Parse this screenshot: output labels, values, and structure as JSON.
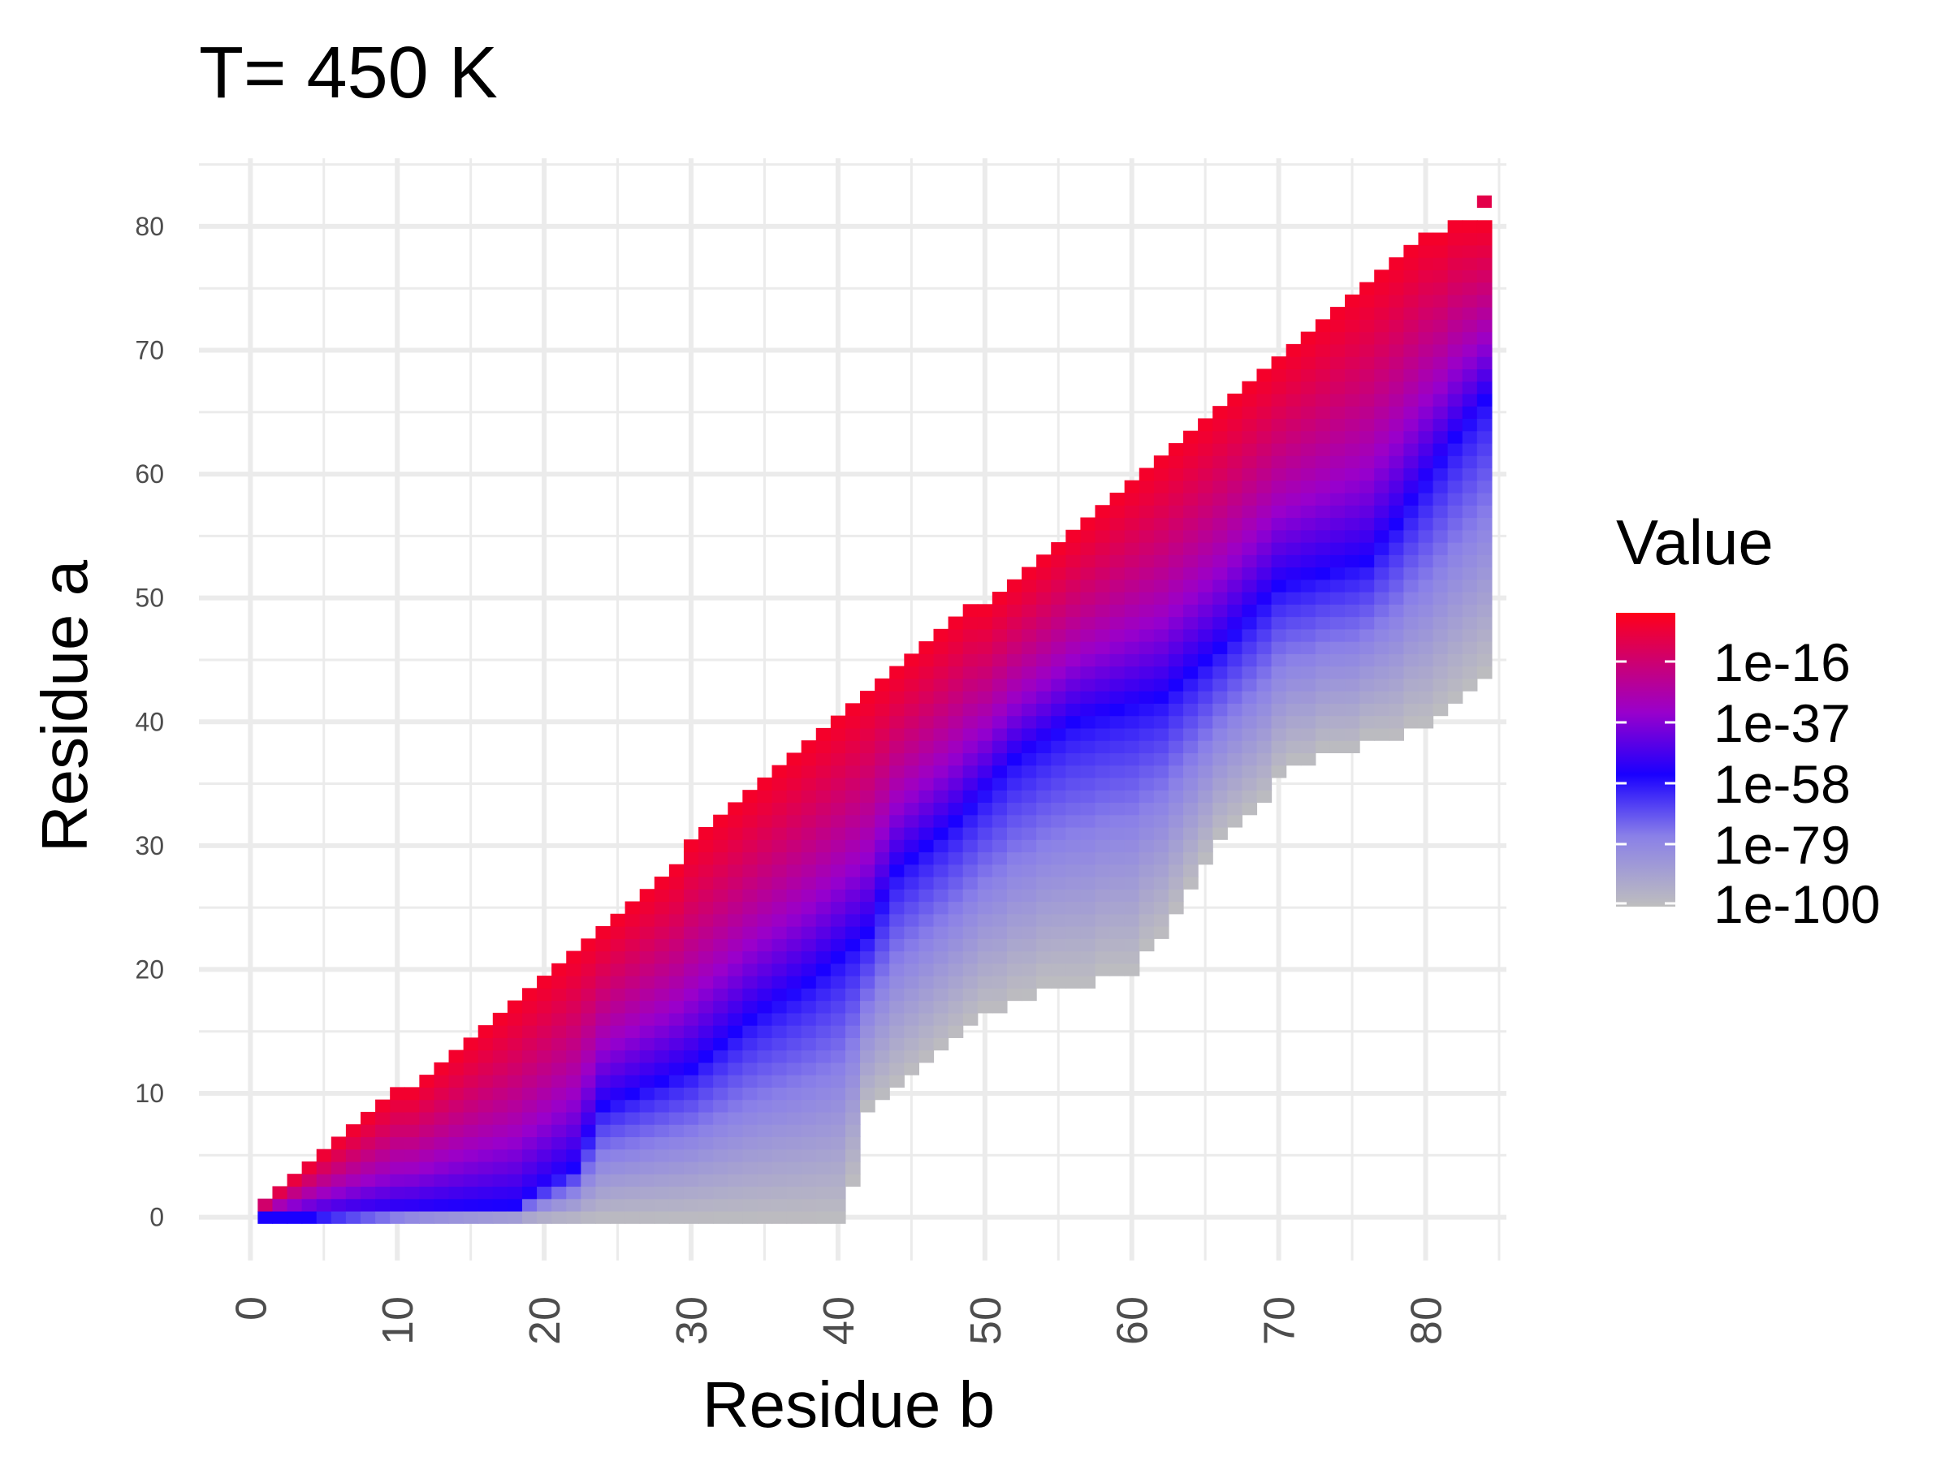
{
  "chart_data": {
    "type": "heatmap",
    "title": "T= 450 K",
    "xlabel": "Residue b",
    "ylabel": "Residue a",
    "xlim": [
      -3.5,
      85.5
    ],
    "ylim": [
      -3.5,
      85.5
    ],
    "x_ticks": [
      "0",
      "10",
      "20",
      "30",
      "40",
      "50",
      "60",
      "70",
      "80"
    ],
    "y_ticks": [
      "0",
      "10",
      "20",
      "30",
      "40",
      "50",
      "60",
      "70",
      "80"
    ],
    "grid": true,
    "color_scale": "log10",
    "legend": {
      "title": "Value",
      "position": "right",
      "labels": [
        "1e-16",
        "1e-37",
        "1e-58",
        "1e-79",
        "1e-100"
      ],
      "gradient_stops": [
        {
          "log10": 0,
          "color": "#ff0019"
        },
        {
          "log10": -37,
          "color": "#9900cc"
        },
        {
          "log10": -58,
          "color": "#1a00ff"
        },
        {
          "log10": -79,
          "color": "#8a80e8"
        },
        {
          "log10": -100,
          "color": "#bebebe"
        }
      ]
    },
    "mask": {
      "upper_edge_a_for_b": [
        [
          1,
          1
        ],
        [
          20,
          19
        ],
        [
          40,
          40
        ],
        [
          58,
          57
        ],
        [
          78,
          77
        ],
        [
          82,
          80
        ]
      ],
      "lower_edge_a_for_b": [
        [
          1,
          0
        ],
        [
          40,
          0
        ],
        [
          41,
          3
        ],
        [
          42,
          9
        ],
        [
          46,
          13
        ],
        [
          50,
          17
        ],
        [
          55,
          19
        ],
        [
          60,
          20
        ],
        [
          63,
          25
        ],
        [
          66,
          31
        ],
        [
          69,
          34
        ],
        [
          71,
          37
        ],
        [
          75,
          38
        ],
        [
          77,
          39
        ],
        [
          80,
          40
        ],
        [
          82,
          42
        ],
        [
          84,
          44
        ]
      ],
      "isolated_cell": [
        84,
        82
      ]
    },
    "ridges": {
      "blue_valley_a_for_b": [
        [
          4,
          0
        ],
        [
          18,
          1
        ],
        [
          22,
          4
        ],
        [
          24,
          9
        ],
        [
          30,
          12
        ],
        [
          34,
          16
        ],
        [
          38,
          19
        ],
        [
          42,
          23
        ],
        [
          44,
          28
        ],
        [
          48,
          32
        ],
        [
          52,
          37
        ],
        [
          56,
          40
        ],
        [
          62,
          42
        ],
        [
          66,
          46
        ],
        [
          70,
          51
        ],
        [
          76,
          53
        ],
        [
          78,
          56
        ],
        [
          82,
          63
        ],
        [
          84,
          66
        ]
      ],
      "red_peak_offset": 0.5
    },
    "values_log10": {
      "max": -3,
      "min": -100,
      "diagonal_band": "1e-3 to 1e-16",
      "valley": "about 1e-58",
      "far_from_diagonal": "down to 1e-100"
    }
  }
}
